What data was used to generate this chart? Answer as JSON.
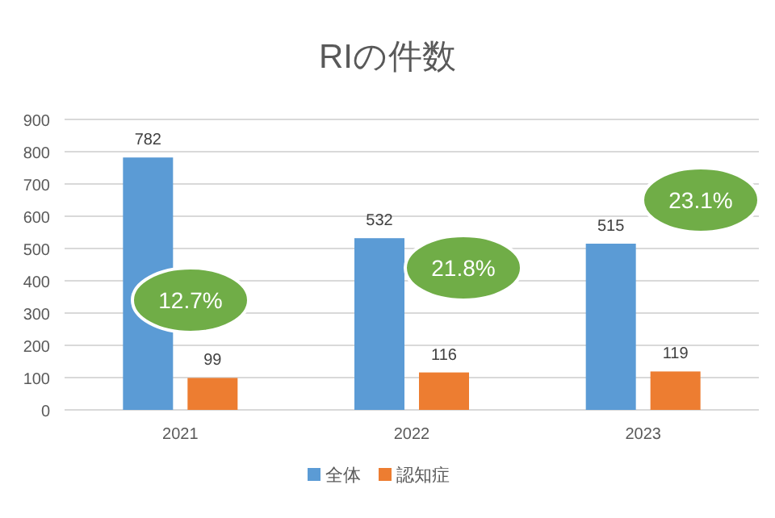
{
  "chart_data": {
    "type": "bar",
    "title": "RIの件数",
    "categories": [
      "2021",
      "2022",
      "2023"
    ],
    "series": [
      {
        "name": "全体",
        "color": "#5b9bd5",
        "values": [
          782,
          532,
          515
        ]
      },
      {
        "name": "認知症",
        "color": "#ed7d31",
        "values": [
          99,
          116,
          119
        ]
      }
    ],
    "ylim": [
      0,
      900
    ],
    "yticks": [
      0,
      100,
      200,
      300,
      400,
      500,
      600,
      700,
      800,
      900
    ],
    "grid": "y",
    "legend": "bottom",
    "data_labels": true,
    "annotations": [
      "12.7%",
      "21.8%",
      "23.1%"
    ]
  }
}
